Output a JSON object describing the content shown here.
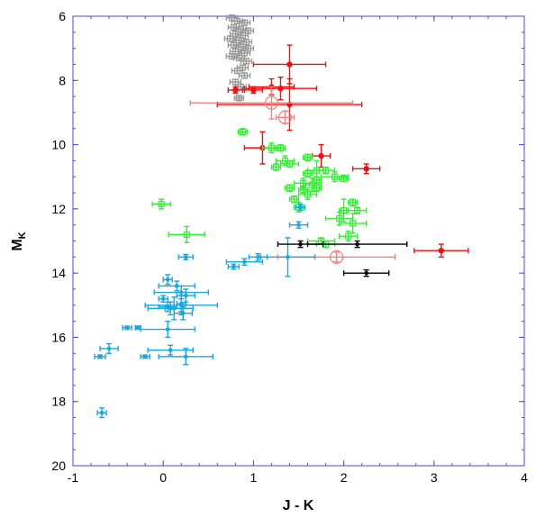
{
  "chart_data": {
    "type": "scatter",
    "xlabel": "J - K",
    "ylabel_main": "M",
    "ylabel_sub": "K",
    "xlim": [
      -1,
      4
    ],
    "ylim": [
      20,
      6
    ],
    "y_inverted": true,
    "xticks": [
      -1,
      0,
      1,
      2,
      3,
      4
    ],
    "yticks": [
      6,
      8,
      10,
      12,
      14,
      16,
      18,
      20
    ],
    "grid": false,
    "legend": "none",
    "series": [
      {
        "color": "#999999",
        "marker": "open-square",
        "points": [
          {
            "x": 0.76,
            "y": 6.05,
            "xerr": 0.06,
            "yerr": 0.08
          },
          {
            "x": 0.82,
            "y": 6.15,
            "xerr": 0.06,
            "yerr": 0.08
          },
          {
            "x": 0.9,
            "y": 6.2,
            "xerr": 0.06,
            "yerr": 0.08
          },
          {
            "x": 0.78,
            "y": 6.35,
            "xerr": 0.06,
            "yerr": 0.08
          },
          {
            "x": 0.86,
            "y": 6.4,
            "xerr": 0.06,
            "yerr": 0.08
          },
          {
            "x": 0.94,
            "y": 6.45,
            "xerr": 0.06,
            "yerr": 0.08
          },
          {
            "x": 0.8,
            "y": 6.55,
            "xerr": 0.06,
            "yerr": 0.08
          },
          {
            "x": 0.88,
            "y": 6.6,
            "xerr": 0.06,
            "yerr": 0.08
          },
          {
            "x": 0.74,
            "y": 6.7,
            "xerr": 0.06,
            "yerr": 0.08
          },
          {
            "x": 0.84,
            "y": 6.75,
            "xerr": 0.06,
            "yerr": 0.08
          },
          {
            "x": 0.92,
            "y": 6.8,
            "xerr": 0.06,
            "yerr": 0.08
          },
          {
            "x": 0.78,
            "y": 6.9,
            "xerr": 0.06,
            "yerr": 0.08
          },
          {
            "x": 0.86,
            "y": 6.95,
            "xerr": 0.06,
            "yerr": 0.08
          },
          {
            "x": 0.94,
            "y": 7.0,
            "xerr": 0.06,
            "yerr": 0.08
          },
          {
            "x": 0.8,
            "y": 7.1,
            "xerr": 0.06,
            "yerr": 0.08
          },
          {
            "x": 0.9,
            "y": 7.15,
            "xerr": 0.06,
            "yerr": 0.08
          },
          {
            "x": 0.76,
            "y": 7.25,
            "xerr": 0.06,
            "yerr": 0.08
          },
          {
            "x": 0.84,
            "y": 7.3,
            "xerr": 0.06,
            "yerr": 0.08
          },
          {
            "x": 0.92,
            "y": 7.4,
            "xerr": 0.06,
            "yerr": 0.08
          },
          {
            "x": 0.88,
            "y": 7.6,
            "xerr": 0.06,
            "yerr": 0.08
          },
          {
            "x": 0.82,
            "y": 7.7,
            "xerr": 0.06,
            "yerr": 0.08
          },
          {
            "x": 0.9,
            "y": 7.85,
            "xerr": 0.06,
            "yerr": 0.08
          },
          {
            "x": 0.8,
            "y": 8.05,
            "xerr": 0.06,
            "yerr": 0.08
          },
          {
            "x": 0.86,
            "y": 8.2,
            "xerr": 0.06,
            "yerr": 0.08
          },
          {
            "x": 0.84,
            "y": 8.55,
            "xerr": 0.05,
            "yerr": 0.06
          }
        ]
      },
      {
        "color": "#ee1111",
        "marker": "filled-circle",
        "points": [
          {
            "x": 1.4,
            "y": 7.5,
            "xerr": 0.4,
            "yerr": 0.6
          },
          {
            "x": 1.2,
            "y": 8.2,
            "xerr": 0.25,
            "yerr": 0.25
          },
          {
            "x": 1.3,
            "y": 8.25,
            "xerr": 0.4,
            "yerr": 0.35
          },
          {
            "x": 0.8,
            "y": 8.3,
            "xerr": 0.08,
            "yerr": 0.1
          },
          {
            "x": 1.0,
            "y": 8.3,
            "xerr": 0.1,
            "yerr": 0.1
          },
          {
            "x": 1.4,
            "y": 8.75,
            "xerr": 0.8,
            "yerr": 0.8
          },
          {
            "x": 1.1,
            "y": 10.1,
            "xerr": 0.2,
            "yerr": 0.5
          },
          {
            "x": 1.75,
            "y": 10.35,
            "xerr": 0.1,
            "yerr": 0.35
          },
          {
            "x": 2.25,
            "y": 10.75,
            "xerr": 0.15,
            "yerr": 0.15
          },
          {
            "x": 3.08,
            "y": 13.3,
            "xerr": 0.3,
            "yerr": 0.2
          }
        ]
      },
      {
        "color": "#f08080",
        "marker": "open-circle",
        "points": [
          {
            "x": 1.2,
            "y": 8.7,
            "xerr": 0.9,
            "yerr": 0.5
          },
          {
            "x": 1.35,
            "y": 9.15,
            "xerr": 0.1,
            "yerr": 0.2
          },
          {
            "x": 1.92,
            "y": 13.5,
            "xerr": 0.65,
            "yerr": 0.15
          }
        ]
      },
      {
        "color": "#33ee33",
        "marker": "open-square",
        "points": [
          {
            "x": 0.88,
            "y": 9.6,
            "xerr": 0.05,
            "yerr": 0.1
          },
          {
            "x": 1.2,
            "y": 10.1,
            "xerr": 0.1,
            "yerr": 0.15
          },
          {
            "x": 1.3,
            "y": 10.1,
            "xerr": 0.05,
            "yerr": 0.1
          },
          {
            "x": 1.6,
            "y": 10.4,
            "xerr": 0.05,
            "yerr": 0.1
          },
          {
            "x": 1.35,
            "y": 10.5,
            "xerr": 0.1,
            "yerr": 0.15
          },
          {
            "x": 1.4,
            "y": 10.6,
            "xerr": 0.1,
            "yerr": 0.1
          },
          {
            "x": 1.25,
            "y": 10.7,
            "xerr": 0.05,
            "yerr": 0.1
          },
          {
            "x": 1.7,
            "y": 10.8,
            "xerr": 0.1,
            "yerr": 0.3
          },
          {
            "x": 1.8,
            "y": 10.8,
            "xerr": 0.1,
            "yerr": 0.1
          },
          {
            "x": 1.6,
            "y": 10.9,
            "xerr": 0.05,
            "yerr": 0.1
          },
          {
            "x": 1.9,
            "y": 11.0,
            "xerr": 0.15,
            "yerr": 0.15
          },
          {
            "x": 2.0,
            "y": 11.05,
            "xerr": 0.05,
            "yerr": 0.1
          },
          {
            "x": 1.7,
            "y": 11.1,
            "xerr": 0.05,
            "yerr": 0.1
          },
          {
            "x": 1.55,
            "y": 11.2,
            "xerr": 0.1,
            "yerr": 0.15
          },
          {
            "x": 1.65,
            "y": 11.25,
            "xerr": 0.1,
            "yerr": 0.2
          },
          {
            "x": 1.4,
            "y": 11.35,
            "xerr": 0.05,
            "yerr": 0.1
          },
          {
            "x": 1.7,
            "y": 11.35,
            "xerr": 0.05,
            "yerr": 0.1
          },
          {
            "x": 1.55,
            "y": 11.4,
            "xerr": 0.05,
            "yerr": 0.1
          },
          {
            "x": 1.6,
            "y": 11.55,
            "xerr": 0.1,
            "yerr": 0.15
          },
          {
            "x": 1.45,
            "y": 11.7,
            "xerr": 0.05,
            "yerr": 0.1
          },
          {
            "x": 2.1,
            "y": 11.8,
            "xerr": 0.05,
            "yerr": 0.1
          },
          {
            "x": 1.5,
            "y": 11.95,
            "xerr": 0.05,
            "yerr": 0.15
          },
          {
            "x": 2.0,
            "y": 12.05,
            "xerr": 0.05,
            "yerr": 0.35
          },
          {
            "x": 2.15,
            "y": 12.05,
            "xerr": 0.1,
            "yerr": 0.1
          },
          {
            "x": 1.95,
            "y": 12.3,
            "xerr": 0.15,
            "yerr": 0.2
          },
          {
            "x": 2.1,
            "y": 12.45,
            "xerr": 0.15,
            "yerr": 0.3
          },
          {
            "x": 2.05,
            "y": 12.85,
            "xerr": 0.1,
            "yerr": 0.15
          },
          {
            "x": 1.75,
            "y": 13.0,
            "xerr": 0.15,
            "yerr": 0.1
          },
          {
            "x": 1.8,
            "y": 13.1,
            "xerr": 0.1,
            "yerr": 0.1
          },
          {
            "x": -0.02,
            "y": 11.85,
            "xerr": 0.1,
            "yerr": 0.15
          },
          {
            "x": 0.26,
            "y": 12.8,
            "xerr": 0.2,
            "yerr": 0.25
          }
        ]
      },
      {
        "color": "#1aa7dd",
        "marker": "filled-dot",
        "points": [
          {
            "x": 1.52,
            "y": 11.95,
            "xerr": 0.05,
            "yerr": 0.1
          },
          {
            "x": 1.5,
            "y": 12.5,
            "xerr": 0.1,
            "yerr": 0.1
          },
          {
            "x": 0.25,
            "y": 13.5,
            "xerr": 0.08,
            "yerr": 0.08
          },
          {
            "x": 1.05,
            "y": 13.5,
            "xerr": 0.1,
            "yerr": 0.1
          },
          {
            "x": 0.9,
            "y": 13.65,
            "xerr": 0.2,
            "yerr": 0.1
          },
          {
            "x": 1.38,
            "y": 13.5,
            "xerr": 0.3,
            "yerr": 0.6
          },
          {
            "x": 0.78,
            "y": 13.8,
            "xerr": 0.06,
            "yerr": 0.08
          },
          {
            "x": 0.05,
            "y": 14.2,
            "xerr": 0.05,
            "yerr": 0.15
          },
          {
            "x": 0.15,
            "y": 14.4,
            "xerr": 0.2,
            "yerr": 0.15
          },
          {
            "x": 0.2,
            "y": 14.6,
            "xerr": 0.3,
            "yerr": 0.2
          },
          {
            "x": 0.25,
            "y": 14.7,
            "xerr": 0.1,
            "yerr": 0.2
          },
          {
            "x": 0.0,
            "y": 14.8,
            "xerr": 0.05,
            "yerr": 0.1
          },
          {
            "x": 0.2,
            "y": 14.95,
            "xerr": 0.05,
            "yerr": 0.25
          },
          {
            "x": 0.05,
            "y": 15.05,
            "xerr": 0.1,
            "yerr": 0.15
          },
          {
            "x": 0.08,
            "y": 15.1,
            "xerr": 0.25,
            "yerr": 0.2
          },
          {
            "x": 0.2,
            "y": 15.0,
            "xerr": 0.4,
            "yerr": 0.3
          },
          {
            "x": 0.12,
            "y": 15.1,
            "xerr": 0.1,
            "yerr": 0.35
          },
          {
            "x": 0.22,
            "y": 15.25,
            "xerr": 0.1,
            "yerr": 0.2
          },
          {
            "x": -0.4,
            "y": 15.7,
            "xerr": 0.05,
            "yerr": 0.05
          },
          {
            "x": -0.28,
            "y": 15.7,
            "xerr": 0.03,
            "yerr": 0.05
          },
          {
            "x": 0.05,
            "y": 15.75,
            "xerr": 0.3,
            "yerr": 0.25
          },
          {
            "x": -0.6,
            "y": 16.35,
            "xerr": 0.1,
            "yerr": 0.15
          },
          {
            "x": 0.08,
            "y": 16.4,
            "xerr": 0.25,
            "yerr": 0.15
          },
          {
            "x": -0.7,
            "y": 16.6,
            "xerr": 0.06,
            "yerr": 0.05
          },
          {
            "x": -0.2,
            "y": 16.6,
            "xerr": 0.05,
            "yerr": 0.05
          },
          {
            "x": 0.25,
            "y": 16.6,
            "xerr": 0.3,
            "yerr": 0.25
          },
          {
            "x": -0.68,
            "y": 18.35,
            "xerr": 0.05,
            "yerr": 0.15
          }
        ]
      },
      {
        "color": "#000000",
        "marker": "filled-dot",
        "points": [
          {
            "x": 1.52,
            "y": 13.1,
            "xerr": 0.25,
            "yerr": 0.1
          },
          {
            "x": 2.15,
            "y": 13.1,
            "xerr": 0.55,
            "yerr": 0.1
          },
          {
            "x": 2.25,
            "y": 14.0,
            "xerr": 0.25,
            "yerr": 0.1
          }
        ]
      }
    ]
  }
}
